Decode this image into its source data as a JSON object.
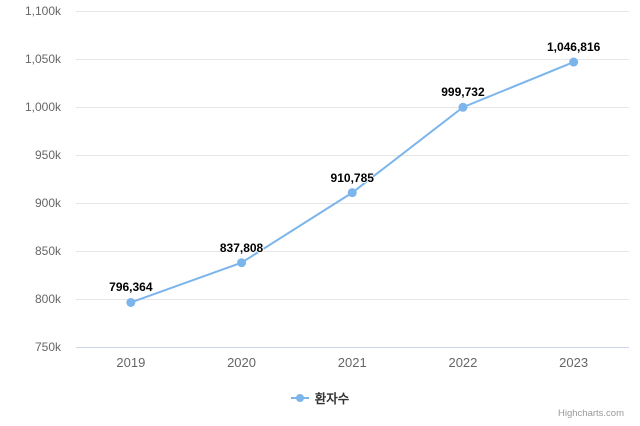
{
  "chart": {
    "legend": {
      "label": "환자수"
    },
    "credits": {
      "label": "Highcharts.com"
    }
  },
  "chart_data": {
    "type": "line",
    "title": "",
    "xlabel": "",
    "ylabel": "",
    "categories": [
      "2019",
      "2020",
      "2021",
      "2022",
      "2023"
    ],
    "series": [
      {
        "name": "환자수",
        "values": [
          796364,
          837808,
          910785,
          999732,
          1046816
        ],
        "value_labels": [
          "796,364",
          "837,808",
          "910,785",
          "999,732",
          "1,046,816"
        ]
      }
    ],
    "ylim": [
      750000,
      1100000
    ],
    "ytick_step": 50000,
    "ytick_labels": [
      "750k",
      "800k",
      "850k",
      "900k",
      "950k",
      "1,000k",
      "1,050k",
      "1,100k"
    ],
    "grid": true,
    "legend_position": "bottom-center",
    "colors": {
      "series": "#7cb5ec",
      "grid": "#e6e6e6",
      "axis_line": "#ccd6eb",
      "axis_labels": "#666666",
      "data_labels": "#000000",
      "legend_text": "#333333",
      "credits": "#999999",
      "background": "#ffffff"
    }
  }
}
